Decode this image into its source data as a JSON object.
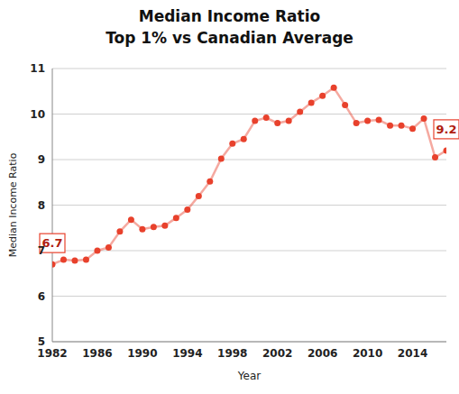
{
  "chart_data": {
    "type": "line",
    "title": "Median Income Ratio",
    "subtitle": "Top 1% vs Canadian Average",
    "x_label": "Year",
    "y_label": "Median Income Ratio",
    "x": [
      1982,
      1983,
      1984,
      1985,
      1986,
      1987,
      1988,
      1989,
      1990,
      1991,
      1992,
      1993,
      1994,
      1995,
      1996,
      1997,
      1998,
      1999,
      2000,
      2001,
      2002,
      2003,
      2004,
      2005,
      2006,
      2007,
      2008,
      2009,
      2010,
      2011,
      2012,
      2013,
      2014,
      2015,
      2016,
      2017
    ],
    "series": [
      {
        "name": "Median Income Ratio",
        "color": "#e8412c",
        "marker": "circle",
        "line_style": "solid",
        "values": [
          6.7,
          6.8,
          6.78,
          6.8,
          7.0,
          7.07,
          7.42,
          7.68,
          7.47,
          7.52,
          7.55,
          7.72,
          7.9,
          8.2,
          8.52,
          9.02,
          9.35,
          9.45,
          9.85,
          9.92,
          9.8,
          9.85,
          10.05,
          10.25,
          10.4,
          10.58,
          10.2,
          9.8,
          9.85,
          9.87,
          9.75,
          9.75,
          9.68,
          9.9,
          9.05,
          9.2
        ]
      }
    ],
    "xlim": [
      1982,
      2017
    ],
    "xticks": [
      1982,
      1986,
      1990,
      1994,
      1998,
      2002,
      2006,
      2010,
      2014
    ],
    "ylim": [
      5,
      11
    ],
    "yticks": [
      5,
      6,
      7,
      8,
      9,
      10,
      11
    ],
    "grid": true,
    "annotations": [
      {
        "x": 1982,
        "y": 6.7,
        "text": "6.7"
      },
      {
        "x": 2017,
        "y": 9.2,
        "text": "9.2"
      }
    ]
  }
}
